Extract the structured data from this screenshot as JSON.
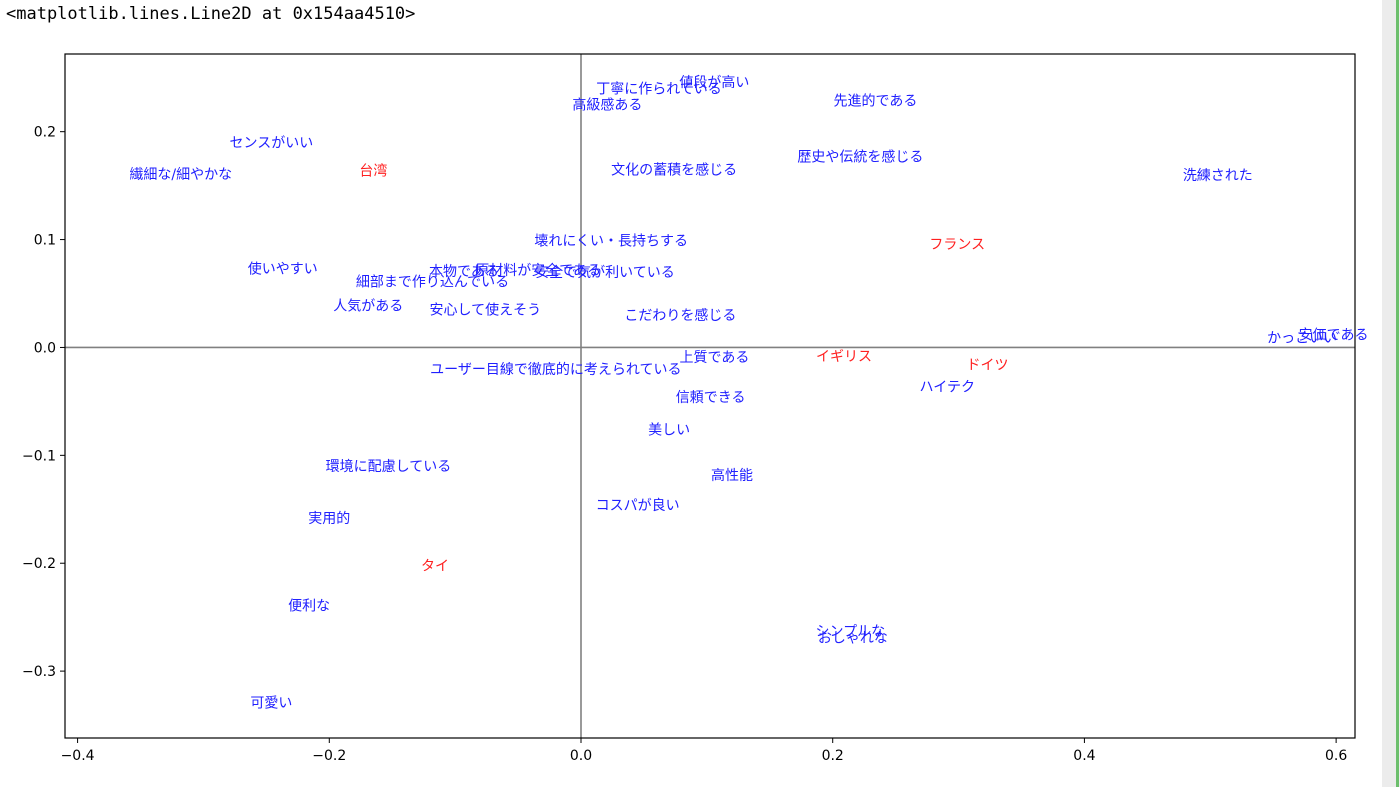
{
  "output_text": "<matplotlib.lines.Line2D at 0x154aa4510>",
  "colors": {
    "row_color": "#ff2020",
    "col_color": "#2020ff",
    "axis_line_color": "#808080"
  },
  "chart_data": {
    "type": "scatter",
    "xlim": [
      -0.41,
      0.615
    ],
    "ylim": [
      -0.362,
      0.272
    ],
    "xticks": [
      -0.4,
      -0.2,
      0.0,
      0.2,
      0.4,
      0.6
    ],
    "xtick_labels": [
      "−0.4",
      "−0.2",
      "0.0",
      "0.2",
      "0.4",
      "0.6"
    ],
    "yticks": [
      -0.3,
      -0.2,
      -0.1,
      0.0,
      0.1,
      0.2
    ],
    "ytick_labels": [
      "−0.3",
      "−0.2",
      "−0.1",
      "0.0",
      "0.1",
      "0.2"
    ],
    "reference_lines": {
      "x": 0,
      "y": 0
    },
    "grid": false,
    "series": [
      {
        "color": "#ff2020",
        "points": [
          {
            "label": "台湾",
            "x": -0.165,
            "y": 0.164
          },
          {
            "label": "フランス",
            "x": 0.299,
            "y": 0.096
          },
          {
            "label": "イギリス",
            "x": 0.209,
            "y": -0.008
          },
          {
            "label": "ドイツ",
            "x": 0.323,
            "y": -0.016
          },
          {
            "label": "タイ",
            "x": -0.116,
            "y": -0.202
          }
        ]
      },
      {
        "color": "#2020ff",
        "points": [
          {
            "label": "値段が高い",
            "x": 0.106,
            "y": 0.246
          },
          {
            "label": "丁寧に作られている",
            "x": 0.062,
            "y": 0.24
          },
          {
            "label": "高級感ある",
            "x": 0.021,
            "y": 0.225
          },
          {
            "label": "先進的である",
            "x": 0.234,
            "y": 0.229
          },
          {
            "label": "センスがいい",
            "x": -0.246,
            "y": 0.19
          },
          {
            "label": "繊細な/細やかな",
            "x": -0.318,
            "y": 0.161
          },
          {
            "label": "文化の蓄積を感じる",
            "x": 0.074,
            "y": 0.165
          },
          {
            "label": "歴史や伝統を感じる",
            "x": 0.222,
            "y": 0.177
          },
          {
            "label": "洗練された",
            "x": 0.506,
            "y": 0.16
          },
          {
            "label": "壊れにくい・長持ちする",
            "x": 0.024,
            "y": 0.099
          },
          {
            "label": "使いやすい",
            "x": -0.237,
            "y": 0.073
          },
          {
            "label": "本物である",
            "x": -0.093,
            "y": 0.071
          },
          {
            "label": "原材料が安全である",
            "x": -0.034,
            "y": 0.072
          },
          {
            "label": "細部まで作り込んでいる",
            "x": -0.118,
            "y": 0.061
          },
          {
            "label": "安全で気が利いている",
            "x": 0.019,
            "y": 0.07
          },
          {
            "label": "人気がある",
            "x": -0.169,
            "y": 0.039
          },
          {
            "label": "安心して使えそう",
            "x": -0.076,
            "y": 0.035
          },
          {
            "label": "こだわりを感じる",
            "x": 0.079,
            "y": 0.03
          },
          {
            "label": "かっこいい",
            "x": 0.573,
            "y": 0.009
          },
          {
            "label": "安価である",
            "x": 0.598,
            "y": 0.012
          },
          {
            "label": "上質である",
            "x": 0.106,
            "y": -0.009
          },
          {
            "label": "ユーザー目線で徹底的に考えられている",
            "x": -0.02,
            "y": -0.02
          },
          {
            "label": "ハイテク",
            "x": 0.291,
            "y": -0.036
          },
          {
            "label": "信頼できる",
            "x": 0.103,
            "y": -0.046
          },
          {
            "label": "美しい",
            "x": 0.07,
            "y": -0.076
          },
          {
            "label": "環境に配慮している",
            "x": -0.153,
            "y": -0.11
          },
          {
            "label": "高性能",
            "x": 0.12,
            "y": -0.118
          },
          {
            "label": "コスパが良い",
            "x": 0.045,
            "y": -0.146
          },
          {
            "label": "実用的",
            "x": -0.2,
            "y": -0.158
          },
          {
            "label": "便利な",
            "x": -0.216,
            "y": -0.239
          },
          {
            "label": "シンプルな",
            "x": 0.214,
            "y": -0.263
          },
          {
            "label": "おしゃれな",
            "x": 0.216,
            "y": -0.269
          },
          {
            "label": "可愛い",
            "x": -0.246,
            "y": -0.329
          }
        ]
      }
    ]
  }
}
